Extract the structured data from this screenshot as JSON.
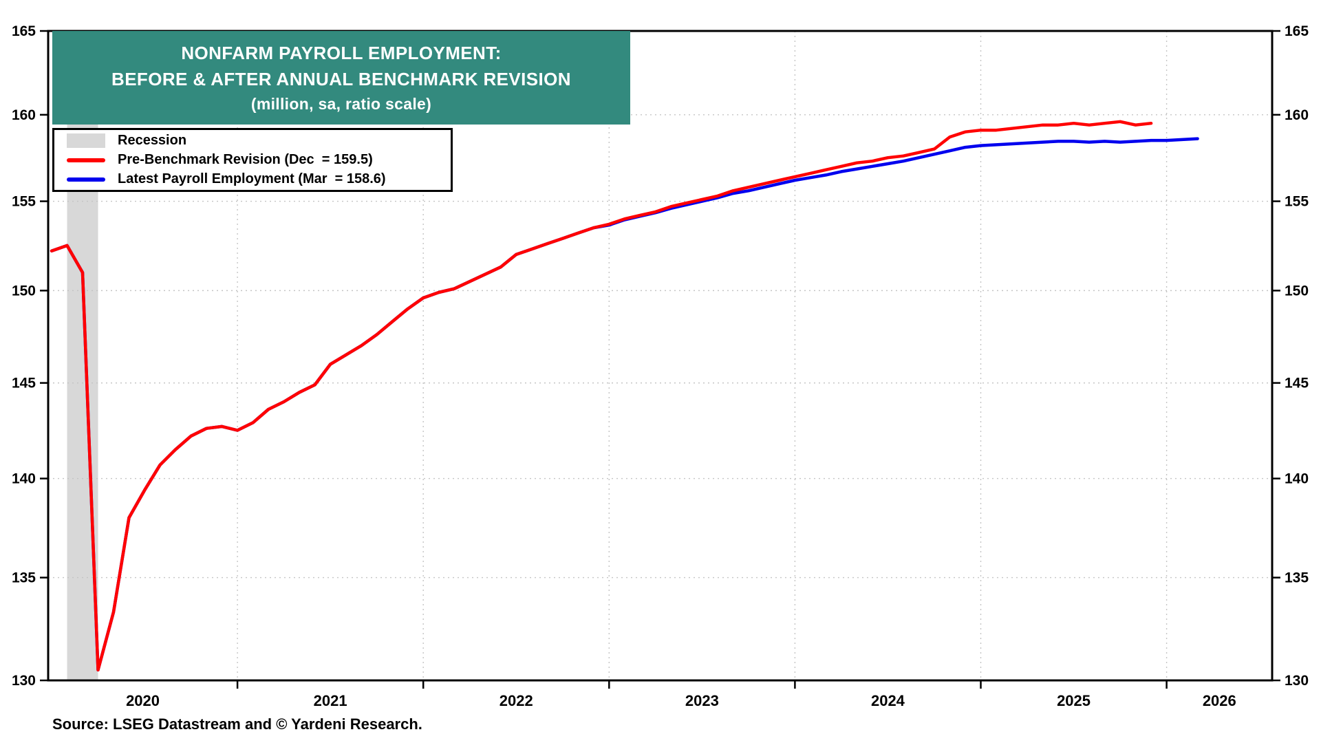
{
  "title": {
    "line1": "NONFARM PAYROLL EMPLOYMENT:",
    "line2": "BEFORE & AFTER ANNUAL BENCHMARK REVISION",
    "line3": "(million, sa, ratio scale)"
  },
  "legend": {
    "items": [
      {
        "label": "Recession",
        "swatch": "recession-band"
      },
      {
        "label": "Pre-Benchmark Revision (Dec  = 159.5)",
        "swatch": "red-line"
      },
      {
        "label": "Latest Payroll Employment (Mar  = 158.6)",
        "swatch": "blue-line"
      }
    ]
  },
  "source": "Source: LSEG Datastream and © Yardeni Research.",
  "colors": {
    "title_bg": "#338A7E",
    "title_text": "#FFFFFF",
    "pre_benchmark": "#FF0000",
    "latest": "#0000EE",
    "recession_band": "#D8D8D8",
    "grid": "#C4C4C4",
    "axis": "#000000",
    "background": "#FFFFFF"
  },
  "chart_data": {
    "type": "line",
    "title": "NONFARM PAYROLL EMPLOYMENT: BEFORE & AFTER ANNUAL BENCHMARK REVISION",
    "subtitle": "(million, sa, ratio scale)",
    "y_scale": "log (ratio scale)",
    "ylim": [
      130,
      165
    ],
    "y_ticks": [
      130,
      135,
      140,
      145,
      150,
      155,
      160,
      165
    ],
    "x_start_month": "2020-01",
    "x_year_labels": [
      "2020",
      "2021",
      "2022",
      "2023",
      "2024",
      "2025",
      "2026"
    ],
    "recession_band": {
      "label": "Recession",
      "start": "2020-02",
      "end": "2020-04",
      "start_month_index": 1,
      "end_month_index": 3
    },
    "series": [
      {
        "name": "Pre-Benchmark Revision",
        "last_point_label": "Dec = 159.5",
        "color_key": "pre_benchmark",
        "start_month_index": 0,
        "values": [
          152.2,
          152.5,
          151.0,
          130.5,
          133.3,
          138.0,
          139.4,
          140.7,
          141.5,
          142.2,
          142.6,
          142.7,
          142.5,
          142.9,
          143.6,
          144.0,
          144.5,
          144.9,
          146.0,
          146.5,
          147.0,
          147.6,
          148.3,
          149.0,
          149.6,
          149.9,
          150.1,
          150.5,
          150.9,
          151.3,
          152.0,
          152.3,
          152.6,
          152.9,
          153.2,
          153.5,
          153.7,
          154.0,
          154.2,
          154.4,
          154.7,
          154.9,
          155.1,
          155.3,
          155.6,
          155.8,
          156.0,
          156.2,
          156.4,
          156.6,
          156.8,
          157.0,
          157.2,
          157.3,
          157.5,
          157.6,
          157.8,
          158.0,
          158.7,
          159.0,
          159.1,
          159.1,
          159.2,
          159.3,
          159.4,
          159.4,
          159.5,
          159.4,
          159.5,
          159.6,
          159.4,
          159.5
        ]
      },
      {
        "name": "Latest Payroll Employment",
        "last_point_label": "Mar = 158.6",
        "color_key": "latest",
        "start_month_index": 0,
        "values": [
          152.2,
          152.5,
          151.0,
          130.5,
          133.3,
          138.0,
          139.4,
          140.7,
          141.5,
          142.2,
          142.6,
          142.7,
          142.5,
          142.9,
          143.6,
          144.0,
          144.5,
          144.9,
          146.0,
          146.5,
          147.0,
          147.6,
          148.3,
          149.0,
          149.6,
          149.9,
          150.1,
          150.5,
          150.9,
          151.3,
          152.0,
          152.3,
          152.6,
          152.9,
          153.2,
          153.5,
          153.65,
          153.95,
          154.15,
          154.35,
          154.6,
          154.8,
          155.0,
          155.2,
          155.45,
          155.6,
          155.8,
          156.0,
          156.2,
          156.35,
          156.5,
          156.7,
          156.85,
          157.0,
          157.15,
          157.3,
          157.5,
          157.7,
          157.9,
          158.1,
          158.2,
          158.25,
          158.3,
          158.35,
          158.4,
          158.45,
          158.45,
          158.4,
          158.45,
          158.4,
          158.45,
          158.5,
          158.5,
          158.55,
          158.6
        ]
      }
    ]
  }
}
